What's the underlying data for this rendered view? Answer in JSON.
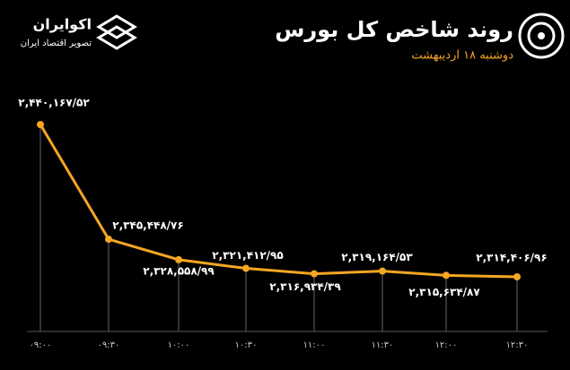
{
  "chart_data": {
    "type": "line",
    "title": "روند شاخص کل بورس",
    "subtitle": "دوشنبه ۱۸ اردیبهشت",
    "brand": "اکوایران",
    "brand_tagline": "تصویر اقتصاد ایران",
    "categories": [
      "۰۹:۰۰",
      "۰۹:۳۰",
      "۱۰:۰۰",
      "۱۰:۳۰",
      "۱۱:۰۰",
      "۱۱:۳۰",
      "۱۲:۰۰",
      "۱۲:۳۰"
    ],
    "values": [
      2440167.52,
      2345448.76,
      2328558.99,
      2321412.95,
      2316934.39,
      2319164.53,
      2315634.87,
      2314406.96
    ],
    "value_labels": [
      "۲,۴۴۰,۱۶۷/۵۲",
      "۲,۳۴۵,۴۴۸/۷۶",
      "۲,۳۲۸,۵۵۸/۹۹",
      "۲,۳۲۱,۴۱۲/۹۵",
      "۲,۳۱۶,۹۳۴/۳۹",
      "۲,۳۱۹,۱۶۴/۵۳",
      "۲,۳۱۵,۶۳۴/۸۷",
      "۲,۳۱۴,۴۰۶/۹۶"
    ],
    "color": "#f5a623"
  }
}
